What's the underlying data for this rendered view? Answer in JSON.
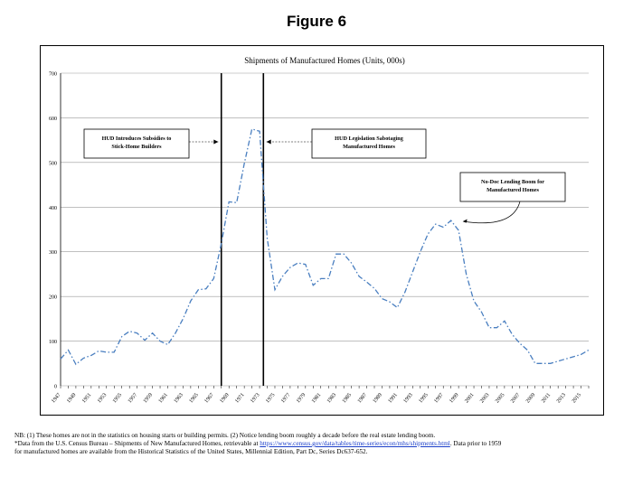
{
  "figure_title": "Figure 6",
  "chart_data": {
    "type": "line",
    "title": "Shipments of Manufactured Homes (Units, 000s)",
    "xlabel": "",
    "ylabel": "",
    "ylim": [
      0,
      700
    ],
    "yticks": [
      0,
      100,
      200,
      300,
      400,
      500,
      600,
      700
    ],
    "xlim": [
      1947,
      2016
    ],
    "xtick_labels": [
      "1947",
      "1949",
      "1951",
      "1953",
      "1955",
      "1957",
      "1959",
      "1961",
      "1963",
      "1965",
      "1967",
      "1969",
      "1971",
      "1973",
      "1975",
      "1977",
      "1979",
      "1981",
      "1983",
      "1985",
      "1987",
      "1989",
      "1991",
      "1993",
      "1995",
      "1997",
      "1999",
      "2001",
      "2003",
      "2005",
      "2007",
      "2009",
      "2011",
      "2013",
      "2015"
    ],
    "grid": true,
    "line_color": "#4a7fc0",
    "line_style": "dash-dot",
    "x": [
      1947,
      1948,
      1949,
      1950,
      1951,
      1952,
      1953,
      1954,
      1955,
      1956,
      1957,
      1958,
      1959,
      1960,
      1961,
      1962,
      1963,
      1964,
      1965,
      1966,
      1967,
      1968,
      1969,
      1970,
      1971,
      1972,
      1973,
      1974,
      1975,
      1976,
      1977,
      1978,
      1979,
      1980,
      1981,
      1982,
      1983,
      1984,
      1985,
      1986,
      1987,
      1988,
      1989,
      1990,
      1991,
      1992,
      1993,
      1994,
      1995,
      1996,
      1997,
      1998,
      1999,
      2000,
      2001,
      2002,
      2003,
      2004,
      2005,
      2006,
      2007,
      2008,
      2009,
      2010,
      2011,
      2012,
      2013,
      2014,
      2015,
      2016
    ],
    "values": [
      60,
      80,
      48,
      62,
      68,
      78,
      75,
      75,
      110,
      122,
      118,
      102,
      118,
      100,
      92,
      118,
      150,
      190,
      215,
      217,
      240,
      318,
      412,
      410,
      497,
      575,
      570,
      330,
      215,
      245,
      265,
      275,
      272,
      225,
      240,
      240,
      295,
      295,
      275,
      245,
      232,
      218,
      195,
      188,
      175,
      210,
      255,
      300,
      340,
      362,
      355,
      370,
      348,
      250,
      190,
      165,
      130,
      130,
      145,
      115,
      95,
      80,
      50,
      50,
      50,
      55,
      60,
      65,
      70,
      80
    ],
    "vlines": [
      1968,
      1973.5
    ],
    "annotations": [
      {
        "text": [
          "HUD Introduces Subsidies to",
          "Stick-Home Builders"
        ]
      },
      {
        "text": [
          "HUD Legislation Sabotaging",
          "Manufactured Homes"
        ]
      },
      {
        "text": [
          "No-Doc Lending Boom for",
          "Manufactured Homes"
        ]
      }
    ]
  },
  "notes": {
    "line1": "NB: (1) These homes are not in the statistics on housing starts or building permits. (2) Notice lending boom roughly a decade before the real estate lending boom.",
    "line2_prefix": "*Data from the U.S. Census Bureau – Shipments of New Manufactured Homes, retrievable at ",
    "line2_link": "https://www.census.gov/data/tables/time-series/econ/mhs/shipments.html",
    "line2_suffix": ". Data prior to 1959",
    "line3": "for manufactured homes are available from the Historical Statistics of the United States, Millennial Edition, Part Dc, Series Dc637-652."
  }
}
